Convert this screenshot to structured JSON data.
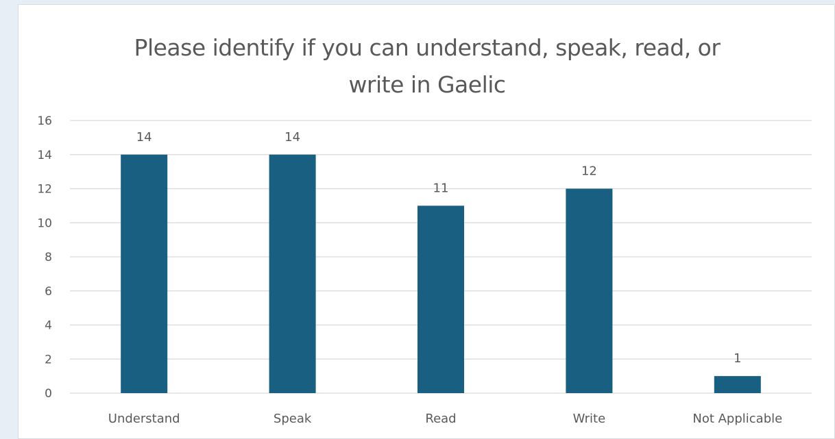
{
  "chart_data": {
    "type": "bar",
    "title_lines": [
      "Please identify if you can understand, speak, read, or",
      "write in Gaelic"
    ],
    "categories": [
      "Understand",
      "Speak",
      "Read",
      "Write",
      "Not Applicable"
    ],
    "values": [
      14,
      14,
      11,
      12,
      1
    ],
    "ylim": [
      0,
      16
    ],
    "yticks": [
      0,
      2,
      4,
      6,
      8,
      10,
      12,
      14,
      16
    ],
    "data_labels": true,
    "grid": true,
    "legend": "none",
    "colors": {
      "bar": "#185f82",
      "grid": "#d9d9d9",
      "text": "#595959",
      "background": "#ffffff",
      "page": "#e8eef6"
    }
  }
}
